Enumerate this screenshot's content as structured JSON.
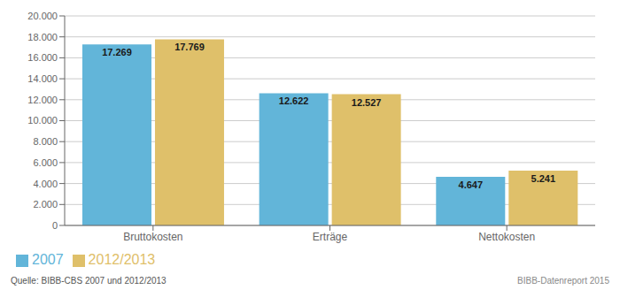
{
  "chart_data": {
    "type": "bar",
    "categories": [
      "Bruttokosten",
      "Erträge",
      "Nettokosten"
    ],
    "series": [
      {
        "name": "2007",
        "color": "#62B5D9",
        "values": [
          17269,
          12622,
          4647
        ],
        "value_labels": [
          "17.269",
          "12.622",
          "4.647"
        ]
      },
      {
        "name": "2012/2013",
        "color": "#DFC06A",
        "values": [
          17769,
          12527,
          5241
        ],
        "value_labels": [
          "17.769",
          "12.527",
          "5.241"
        ]
      }
    ],
    "ylim": [
      0,
      20000
    ],
    "yticks": [
      0,
      {
        "value": 2000,
        "label": "2.000"
      },
      {
        "value": 4000,
        "label": "4.000"
      },
      {
        "value": 6000,
        "label": "6.000"
      },
      {
        "value": 8000,
        "label": "8.000"
      },
      {
        "value": 10000,
        "label": "10.000"
      },
      {
        "value": 12000,
        "label": "12.000"
      },
      {
        "value": 14000,
        "label": "14.000"
      },
      {
        "value": 16000,
        "label": "16.000"
      },
      {
        "value": 18000,
        "label": "18.000"
      },
      {
        "value": 20000,
        "label": "20.000"
      }
    ],
    "grid": true,
    "legend": "bottom",
    "data_labels": true,
    "annotations": [
      "Quelle: BIBB-CBS 2007 und 2012/2013",
      "BIBB-Datenreport 2015"
    ]
  }
}
